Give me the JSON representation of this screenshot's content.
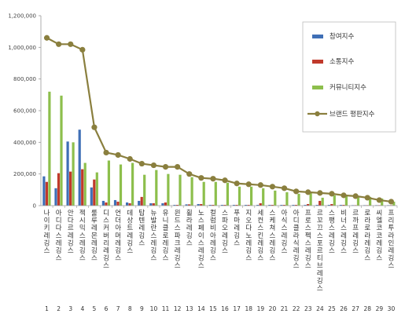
{
  "chart_data": {
    "type": "bar",
    "categories": [
      "나이키레깅스",
      "아디다스레깅스",
      "안다르레깅스",
      "젝시믹스레깅스",
      "룰루레몬레깅스",
      "디스커버리레깅스",
      "언더아머레깅스",
      "데상트레깅스",
      "탑텐레깅스",
      "뉴발란스레깅스",
      "유니클로레깅스",
      "윈드스파크레깅스",
      "휠라레깅스",
      "노스페이스레깅스",
      "컬럼비아레깅스",
      "스파오레깅스",
      "푸마레깅스",
      "지오다노레깅스",
      "세컨스킨레깅스",
      "스케쳐스레깅스",
      "아식스레깅스",
      "아디클라식레깅스",
      "프로스펙스레깅스",
      "르꼬끄스포르티브레깅스",
      "스팽스레깅스",
      "비너스레깅스",
      "르까프레깅스",
      "로라로라레깅스",
      "씨엘코코레깅스",
      "프리투라인레깅스"
    ],
    "numbers": [
      "1",
      "2",
      "3",
      "4",
      "5",
      "6",
      "7",
      "8",
      "9",
      "10",
      "11",
      "12",
      "13",
      "14",
      "15",
      "16",
      "17",
      "18",
      "19",
      "20",
      "21",
      "22",
      "23",
      "24",
      "25",
      "26",
      "27",
      "28",
      "29",
      "30"
    ],
    "series": [
      {
        "name": "참여지수",
        "color": "#3f6fb6",
        "values": [
          185000,
          110000,
          405000,
          480000,
          115000,
          30000,
          35000,
          20000,
          30000,
          15000,
          15000,
          5000,
          8000,
          10000,
          5000,
          5000,
          5000,
          5000,
          5000,
          5000,
          5000,
          5000,
          5000,
          5000,
          5000,
          5000,
          3000,
          3000,
          3000,
          3000
        ]
      },
      {
        "name": "소통지수",
        "color": "#c0392b",
        "values": [
          150000,
          205000,
          215000,
          230000,
          165000,
          20000,
          25000,
          15000,
          55000,
          15000,
          20000,
          5000,
          8000,
          10000,
          5000,
          5000,
          5000,
          5000,
          15000,
          5000,
          5000,
          5000,
          10000,
          30000,
          10000,
          5000,
          3000,
          3000,
          3000,
          3000
        ]
      },
      {
        "name": "커뮤니티지수",
        "color": "#8dbf4c",
        "values": [
          720000,
          695000,
          400000,
          270000,
          210000,
          285000,
          260000,
          270000,
          195000,
          225000,
          200000,
          195000,
          180000,
          150000,
          150000,
          145000,
          120000,
          120000,
          110000,
          95000,
          85000,
          75000,
          80000,
          50000,
          65000,
          60000,
          60000,
          55000,
          45000,
          25000
        ]
      },
      {
        "name": "브랜드 평판지수",
        "color": "#8a7f3e",
        "values": [
          1060000,
          1020000,
          1020000,
          985000,
          495000,
          335000,
          320000,
          295000,
          265000,
          255000,
          245000,
          245000,
          200000,
          175000,
          170000,
          160000,
          140000,
          135000,
          130000,
          120000,
          110000,
          90000,
          85000,
          80000,
          75000,
          65000,
          60000,
          50000,
          35000,
          25000
        ]
      }
    ],
    "ylim": [
      0,
      1200000
    ],
    "yticks": [
      "0",
      "200,000",
      "400,000",
      "600,000",
      "800,000",
      "1,000,000",
      "1,200,000"
    ],
    "legend_position": "top-right",
    "grid": false
  }
}
